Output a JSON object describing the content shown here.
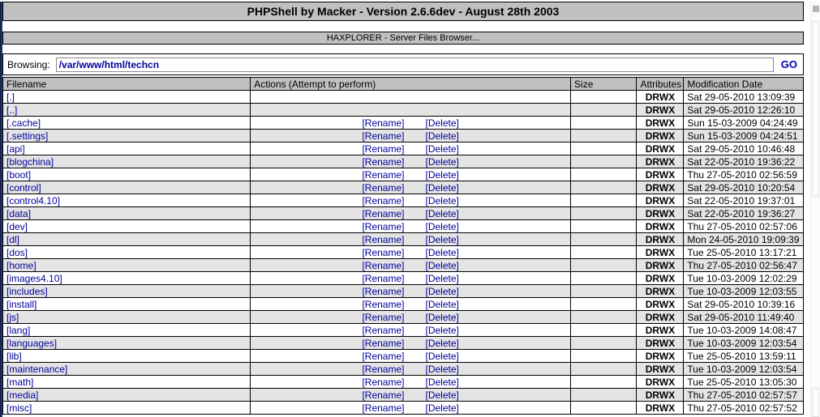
{
  "header": {
    "title": "PHPShell by Macker - Version 2.6.6dev - August 28th 2003"
  },
  "subheader": {
    "title": "HAXPLORER - Server Files Browser..."
  },
  "browsing": {
    "label": "Browsing:",
    "path": "/var/www/html/techcn",
    "go": "GO"
  },
  "files_table": {
    "columns": {
      "filename": "Filename",
      "actions": "Actions (Attempt to perform)",
      "size": "Size",
      "attributes": "Attributes",
      "modified": "Modification Date"
    },
    "actions": {
      "rename": "[Rename]",
      "delete": "[Delete]"
    },
    "rows": [
      {
        "filename": "[.]",
        "has_actions": false,
        "size": "",
        "attributes": "DRWX",
        "modified": "Sat 29-05-2010 13:09:39"
      },
      {
        "filename": "[..]",
        "has_actions": false,
        "size": "",
        "attributes": "DRWX",
        "modified": "Sat 29-05-2010 12:26:10"
      },
      {
        "filename": "[.cache]",
        "has_actions": true,
        "size": "",
        "attributes": "DRWX",
        "modified": "Sun 15-03-2009 04:24:49"
      },
      {
        "filename": "[.settings]",
        "has_actions": true,
        "size": "",
        "attributes": "DRWX",
        "modified": "Sun 15-03-2009 04:24:51"
      },
      {
        "filename": "[api]",
        "has_actions": true,
        "size": "",
        "attributes": "DRWX",
        "modified": "Sat 29-05-2010 10:46:48"
      },
      {
        "filename": "[blogchina]",
        "has_actions": true,
        "size": "",
        "attributes": "DRWX",
        "modified": "Sat 22-05-2010 19:36:22"
      },
      {
        "filename": "[boot]",
        "has_actions": true,
        "size": "",
        "attributes": "DRWX",
        "modified": "Thu 27-05-2010 02:56:59"
      },
      {
        "filename": "[control]",
        "has_actions": true,
        "size": "",
        "attributes": "DRWX",
        "modified": "Sat 29-05-2010 10:20:54"
      },
      {
        "filename": "[control4.10]",
        "has_actions": true,
        "size": "",
        "attributes": "DRWX",
        "modified": "Sat 22-05-2010 19:37:01"
      },
      {
        "filename": "[data]",
        "has_actions": true,
        "size": "",
        "attributes": "DRWX",
        "modified": "Sat 22-05-2010 19:36:27"
      },
      {
        "filename": "[dev]",
        "has_actions": true,
        "size": "",
        "attributes": "DRWX",
        "modified": "Thu 27-05-2010 02:57:06"
      },
      {
        "filename": "[dl]",
        "has_actions": true,
        "size": "",
        "attributes": "DRWX",
        "modified": "Mon 24-05-2010 19:09:39"
      },
      {
        "filename": "[dos]",
        "has_actions": true,
        "size": "",
        "attributes": "DRWX",
        "modified": "Tue 25-05-2010 13:17:21"
      },
      {
        "filename": "[home]",
        "has_actions": true,
        "size": "",
        "attributes": "DRWX",
        "modified": "Thu 27-05-2010 02:56:47"
      },
      {
        "filename": "[images4.10]",
        "has_actions": true,
        "size": "",
        "attributes": "DRWX",
        "modified": "Tue 10-03-2009 12:02:29"
      },
      {
        "filename": "[includes]",
        "has_actions": true,
        "size": "",
        "attributes": "DRWX",
        "modified": "Tue 10-03-2009 12:03:55"
      },
      {
        "filename": "[install]",
        "has_actions": true,
        "size": "",
        "attributes": "DRWX",
        "modified": "Sat 29-05-2010 10:39:16"
      },
      {
        "filename": "[js]",
        "has_actions": true,
        "size": "",
        "attributes": "DRWX",
        "modified": "Sat 29-05-2010 11:49:40"
      },
      {
        "filename": "[lang]",
        "has_actions": true,
        "size": "",
        "attributes": "DRWX",
        "modified": "Tue 10-03-2009 14:08:47"
      },
      {
        "filename": "[languages]",
        "has_actions": true,
        "size": "",
        "attributes": "DRWX",
        "modified": "Tue 10-03-2009 12:03:54"
      },
      {
        "filename": "[lib]",
        "has_actions": true,
        "size": "",
        "attributes": "DRWX",
        "modified": "Tue 25-05-2010 13:59:11"
      },
      {
        "filename": "[maintenance]",
        "has_actions": true,
        "size": "",
        "attributes": "DRWX",
        "modified": "Tue 10-03-2009 12:03:54"
      },
      {
        "filename": "[math]",
        "has_actions": true,
        "size": "",
        "attributes": "DRWX",
        "modified": "Tue 25-05-2010 13:05:30"
      },
      {
        "filename": "[media]",
        "has_actions": true,
        "size": "",
        "attributes": "DRWX",
        "modified": "Thu 27-05-2010 02:57:57"
      },
      {
        "filename": "[misc]",
        "has_actions": true,
        "size": "",
        "attributes": "DRWX",
        "modified": "Thu 27-05-2010 02:57:52"
      }
    ]
  },
  "colors": {
    "bar_background": "#c0c0c0",
    "row_alt_background": "#e4e4e4",
    "link": "#000099",
    "left_stripe": "#23336d"
  }
}
